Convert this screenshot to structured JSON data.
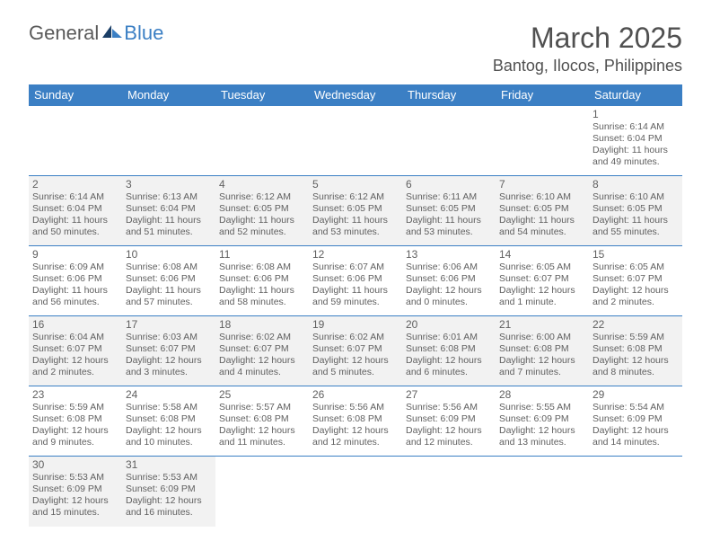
{
  "logo": {
    "general": "General",
    "blue": "Blue"
  },
  "title": "March 2025",
  "location": "Bantog, Ilocos, Philippines",
  "header_bg": "#3b7fc4",
  "header_fg": "#ffffff",
  "shade_bg": "#f2f2f2",
  "border_color": "#3b7fc4",
  "dayHeaders": [
    "Sunday",
    "Monday",
    "Tuesday",
    "Wednesday",
    "Thursday",
    "Friday",
    "Saturday"
  ],
  "weeks": [
    [
      {
        "blank": true
      },
      {
        "blank": true
      },
      {
        "blank": true
      },
      {
        "blank": true
      },
      {
        "blank": true
      },
      {
        "blank": true
      },
      {
        "n": "1",
        "sr": "Sunrise: 6:14 AM",
        "ss": "Sunset: 6:04 PM",
        "dl": "Daylight: 11 hours and 49 minutes."
      }
    ],
    [
      {
        "n": "2",
        "shade": true,
        "sr": "Sunrise: 6:14 AM",
        "ss": "Sunset: 6:04 PM",
        "dl": "Daylight: 11 hours and 50 minutes."
      },
      {
        "n": "3",
        "shade": true,
        "sr": "Sunrise: 6:13 AM",
        "ss": "Sunset: 6:04 PM",
        "dl": "Daylight: 11 hours and 51 minutes."
      },
      {
        "n": "4",
        "shade": true,
        "sr": "Sunrise: 6:12 AM",
        "ss": "Sunset: 6:05 PM",
        "dl": "Daylight: 11 hours and 52 minutes."
      },
      {
        "n": "5",
        "shade": true,
        "sr": "Sunrise: 6:12 AM",
        "ss": "Sunset: 6:05 PM",
        "dl": "Daylight: 11 hours and 53 minutes."
      },
      {
        "n": "6",
        "shade": true,
        "sr": "Sunrise: 6:11 AM",
        "ss": "Sunset: 6:05 PM",
        "dl": "Daylight: 11 hours and 53 minutes."
      },
      {
        "n": "7",
        "shade": true,
        "sr": "Sunrise: 6:10 AM",
        "ss": "Sunset: 6:05 PM",
        "dl": "Daylight: 11 hours and 54 minutes."
      },
      {
        "n": "8",
        "shade": true,
        "sr": "Sunrise: 6:10 AM",
        "ss": "Sunset: 6:05 PM",
        "dl": "Daylight: 11 hours and 55 minutes."
      }
    ],
    [
      {
        "n": "9",
        "sr": "Sunrise: 6:09 AM",
        "ss": "Sunset: 6:06 PM",
        "dl": "Daylight: 11 hours and 56 minutes."
      },
      {
        "n": "10",
        "sr": "Sunrise: 6:08 AM",
        "ss": "Sunset: 6:06 PM",
        "dl": "Daylight: 11 hours and 57 minutes."
      },
      {
        "n": "11",
        "sr": "Sunrise: 6:08 AM",
        "ss": "Sunset: 6:06 PM",
        "dl": "Daylight: 11 hours and 58 minutes."
      },
      {
        "n": "12",
        "sr": "Sunrise: 6:07 AM",
        "ss": "Sunset: 6:06 PM",
        "dl": "Daylight: 11 hours and 59 minutes."
      },
      {
        "n": "13",
        "sr": "Sunrise: 6:06 AM",
        "ss": "Sunset: 6:06 PM",
        "dl": "Daylight: 12 hours and 0 minutes."
      },
      {
        "n": "14",
        "sr": "Sunrise: 6:05 AM",
        "ss": "Sunset: 6:07 PM",
        "dl": "Daylight: 12 hours and 1 minute."
      },
      {
        "n": "15",
        "sr": "Sunrise: 6:05 AM",
        "ss": "Sunset: 6:07 PM",
        "dl": "Daylight: 12 hours and 2 minutes."
      }
    ],
    [
      {
        "n": "16",
        "shade": true,
        "sr": "Sunrise: 6:04 AM",
        "ss": "Sunset: 6:07 PM",
        "dl": "Daylight: 12 hours and 2 minutes."
      },
      {
        "n": "17",
        "shade": true,
        "sr": "Sunrise: 6:03 AM",
        "ss": "Sunset: 6:07 PM",
        "dl": "Daylight: 12 hours and 3 minutes."
      },
      {
        "n": "18",
        "shade": true,
        "sr": "Sunrise: 6:02 AM",
        "ss": "Sunset: 6:07 PM",
        "dl": "Daylight: 12 hours and 4 minutes."
      },
      {
        "n": "19",
        "shade": true,
        "sr": "Sunrise: 6:02 AM",
        "ss": "Sunset: 6:07 PM",
        "dl": "Daylight: 12 hours and 5 minutes."
      },
      {
        "n": "20",
        "shade": true,
        "sr": "Sunrise: 6:01 AM",
        "ss": "Sunset: 6:08 PM",
        "dl": "Daylight: 12 hours and 6 minutes."
      },
      {
        "n": "21",
        "shade": true,
        "sr": "Sunrise: 6:00 AM",
        "ss": "Sunset: 6:08 PM",
        "dl": "Daylight: 12 hours and 7 minutes."
      },
      {
        "n": "22",
        "shade": true,
        "sr": "Sunrise: 5:59 AM",
        "ss": "Sunset: 6:08 PM",
        "dl": "Daylight: 12 hours and 8 minutes."
      }
    ],
    [
      {
        "n": "23",
        "sr": "Sunrise: 5:59 AM",
        "ss": "Sunset: 6:08 PM",
        "dl": "Daylight: 12 hours and 9 minutes."
      },
      {
        "n": "24",
        "sr": "Sunrise: 5:58 AM",
        "ss": "Sunset: 6:08 PM",
        "dl": "Daylight: 12 hours and 10 minutes."
      },
      {
        "n": "25",
        "sr": "Sunrise: 5:57 AM",
        "ss": "Sunset: 6:08 PM",
        "dl": "Daylight: 12 hours and 11 minutes."
      },
      {
        "n": "26",
        "sr": "Sunrise: 5:56 AM",
        "ss": "Sunset: 6:08 PM",
        "dl": "Daylight: 12 hours and 12 minutes."
      },
      {
        "n": "27",
        "sr": "Sunrise: 5:56 AM",
        "ss": "Sunset: 6:09 PM",
        "dl": "Daylight: 12 hours and 12 minutes."
      },
      {
        "n": "28",
        "sr": "Sunrise: 5:55 AM",
        "ss": "Sunset: 6:09 PM",
        "dl": "Daylight: 12 hours and 13 minutes."
      },
      {
        "n": "29",
        "sr": "Sunrise: 5:54 AM",
        "ss": "Sunset: 6:09 PM",
        "dl": "Daylight: 12 hours and 14 minutes."
      }
    ],
    [
      {
        "n": "30",
        "shade": true,
        "sr": "Sunrise: 5:53 AM",
        "ss": "Sunset: 6:09 PM",
        "dl": "Daylight: 12 hours and 15 minutes."
      },
      {
        "n": "31",
        "shade": true,
        "sr": "Sunrise: 5:53 AM",
        "ss": "Sunset: 6:09 PM",
        "dl": "Daylight: 12 hours and 16 minutes."
      },
      {
        "blank": true
      },
      {
        "blank": true
      },
      {
        "blank": true
      },
      {
        "blank": true
      },
      {
        "blank": true
      }
    ]
  ]
}
